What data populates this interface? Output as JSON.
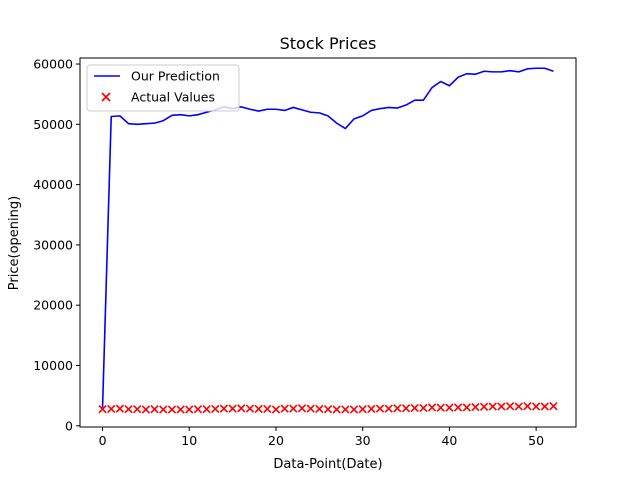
{
  "chart_data": {
    "type": "line",
    "title": "Stock Prices",
    "xlabel": "Data-Point(Date)",
    "ylabel": "Price(opening)",
    "xlim": [
      -2.6,
      54.6
    ],
    "ylim": [
      -200,
      61000
    ],
    "xticks": [
      0,
      10,
      20,
      30,
      40,
      50
    ],
    "yticks": [
      0,
      10000,
      20000,
      30000,
      40000,
      50000,
      60000
    ],
    "grid": false,
    "legend_position": "top-left",
    "series": [
      {
        "name": "Our Prediction",
        "kind": "line",
        "color": "#0000ff",
        "x": [
          0,
          1,
          2,
          3,
          4,
          5,
          6,
          7,
          8,
          9,
          10,
          11,
          12,
          13,
          14,
          15,
          16,
          17,
          18,
          19,
          20,
          21,
          22,
          23,
          24,
          25,
          26,
          27,
          28,
          29,
          30,
          31,
          32,
          33,
          34,
          35,
          36,
          37,
          38,
          39,
          40,
          41,
          42,
          43,
          44,
          45,
          46,
          47,
          48,
          49,
          50,
          51,
          52
        ],
        "values": [
          3000,
          51300,
          51400,
          50100,
          50000,
          50100,
          50200,
          50600,
          51500,
          51600,
          51400,
          51600,
          52000,
          52400,
          52900,
          52600,
          52900,
          52500,
          52200,
          52500,
          52500,
          52300,
          52800,
          52400,
          52000,
          51900,
          51400,
          50200,
          49300,
          50900,
          51400,
          52300,
          52600,
          52800,
          52700,
          53200,
          54000,
          54000,
          56100,
          57100,
          56400,
          57800,
          58400,
          58300,
          58800,
          58700,
          58700,
          58900,
          58700,
          59200,
          59300,
          59300,
          58800
        ]
      },
      {
        "name": "Actual Values",
        "kind": "scatter",
        "marker": "x",
        "color": "#ff0000",
        "x": [
          0,
          1,
          2,
          3,
          4,
          5,
          6,
          7,
          8,
          9,
          10,
          11,
          12,
          13,
          14,
          15,
          16,
          17,
          18,
          19,
          20,
          21,
          22,
          23,
          24,
          25,
          26,
          27,
          28,
          29,
          30,
          31,
          32,
          33,
          34,
          35,
          36,
          37,
          38,
          39,
          40,
          41,
          42,
          43,
          44,
          45,
          46,
          47,
          48,
          49,
          50,
          51,
          52
        ],
        "values": [
          2750,
          2800,
          2850,
          2750,
          2750,
          2700,
          2750,
          2700,
          2700,
          2700,
          2700,
          2750,
          2750,
          2800,
          2850,
          2850,
          2900,
          2850,
          2800,
          2800,
          2700,
          2850,
          2850,
          2900,
          2850,
          2800,
          2750,
          2700,
          2700,
          2700,
          2750,
          2800,
          2850,
          2850,
          2900,
          2900,
          2950,
          2950,
          3050,
          3000,
          3000,
          3050,
          3050,
          3100,
          3150,
          3200,
          3200,
          3250,
          3200,
          3250,
          3200,
          3200,
          3250
        ]
      }
    ]
  }
}
